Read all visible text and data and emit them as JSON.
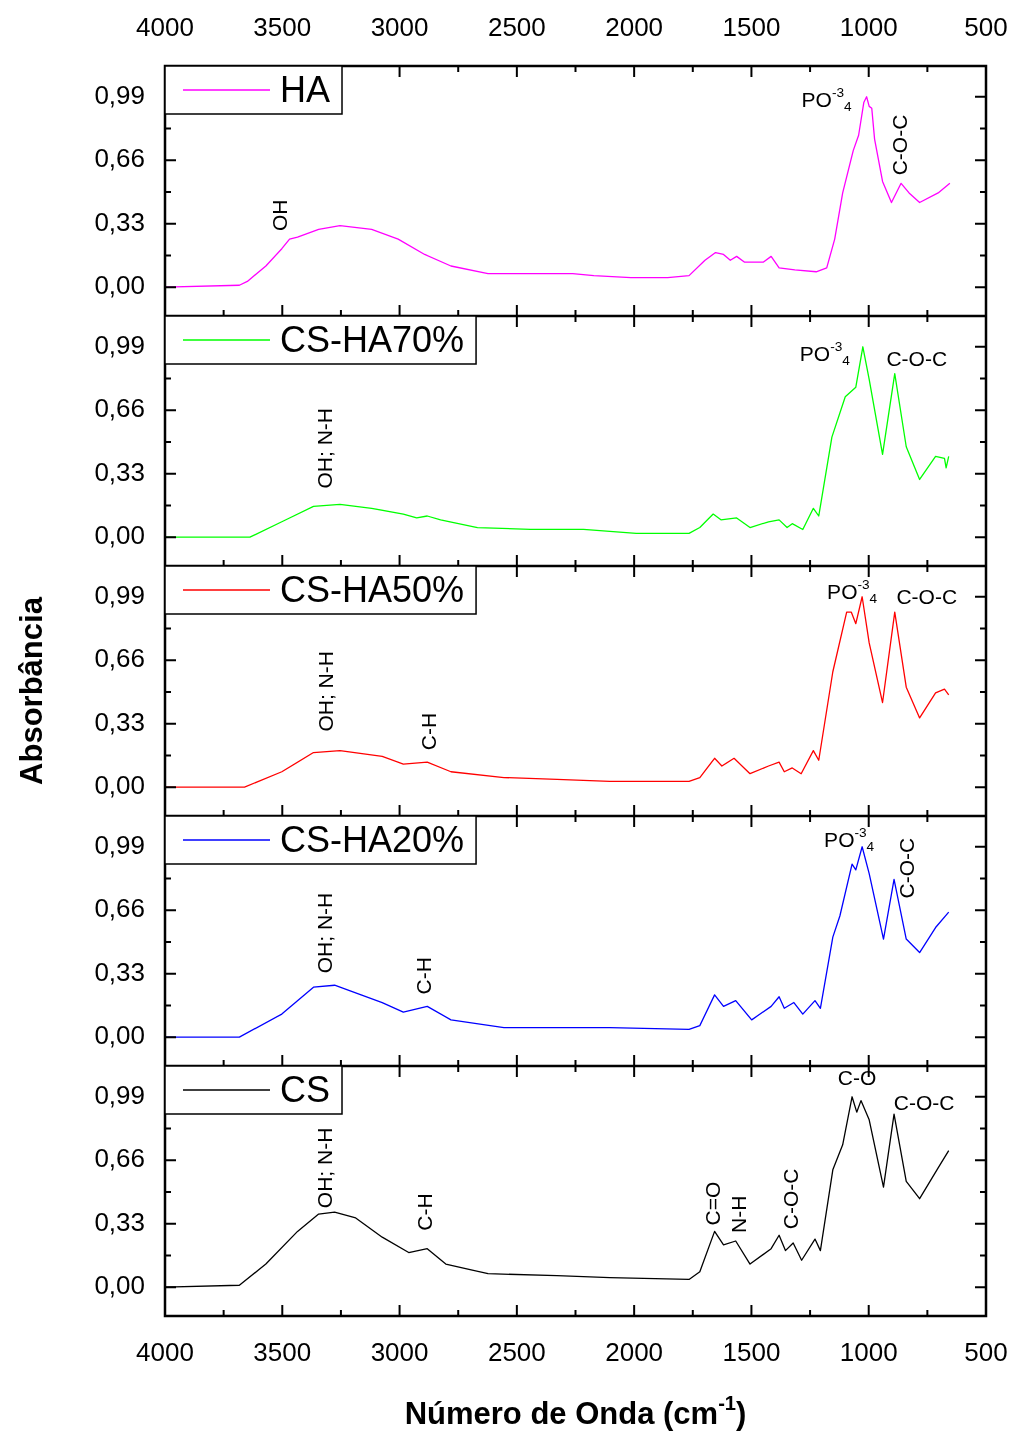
{
  "chart_data": [
    {
      "type": "line",
      "xlim": [
        4000,
        500
      ],
      "xticks": [
        4000,
        {
          "value": 3750,
          "label": null
        },
        3500,
        {
          "value": 3250,
          "label": null
        },
        3000,
        {
          "value": 2750,
          "label": null
        },
        2500,
        {
          "value": 2250,
          "label": null
        },
        2000,
        {
          "value": 1750,
          "label": null
        },
        1500,
        {
          "value": 1250,
          "label": null
        },
        1000,
        {
          "value": 750,
          "label": null
        },
        500
      ],
      "x2lim": [
        4000,
        500
      ],
      "x2ticks": [
        4000,
        {
          "value": 3750,
          "label": null
        },
        3500,
        {
          "value": 3250,
          "label": null
        },
        3000,
        {
          "value": 2750,
          "label": null
        },
        2500,
        {
          "value": 2250,
          "label": null
        },
        2000,
        {
          "value": 1750,
          "label": null
        },
        1500,
        {
          "value": 1250,
          "label": null
        },
        1000,
        {
          "value": 750,
          "label": null
        },
        500
      ],
      "ylim": [
        -0.15,
        1.15
      ],
      "yticks": [
        {
          "value": 0,
          "label": "0,00"
        },
        {
          "value": 0.165,
          "label": null
        },
        {
          "value": 0.33,
          "label": "0,33"
        },
        {
          "value": 0.495,
          "label": null
        },
        {
          "value": 0.66,
          "label": "0,66"
        },
        {
          "value": 0.825,
          "label": null
        },
        {
          "value": 0.99,
          "label": "0,99"
        }
      ],
      "tick_labels": "y",
      "legend": "top left",
      "x": [
        4000,
        3683,
        3649,
        3570,
        3502,
        3469,
        3435,
        3345,
        3254,
        3119,
        3006,
        2893,
        2781,
        2623,
        2442,
        2262,
        2172,
        2014,
        1857,
        1766,
        1698,
        1653,
        1619,
        1590,
        1563,
        1529,
        1483,
        1450,
        1416,
        1382,
        1315,
        1224,
        1179,
        1145,
        1111,
        1066,
        1043,
        1021,
        1009,
        998,
        987,
        975,
        941,
        903,
        862,
        828,
        783,
        704,
        654
      ],
      "series": [
        {
          "name": "HA",
          "color": "#ff00ff",
          "values": [
            0,
            0.01,
            0.03,
            0.11,
            0.2,
            0.25,
            0.26,
            0.3,
            0.32,
            0.3,
            0.25,
            0.17,
            0.11,
            0.07,
            0.07,
            0.07,
            0.06,
            0.05,
            0.05,
            0.06,
            0.14,
            0.18,
            0.17,
            0.14,
            0.16,
            0.13,
            0.13,
            0.13,
            0.16,
            0.1,
            0.09,
            0.08,
            0.1,
            0.25,
            0.49,
            0.71,
            0.79,
            0.96,
            0.99,
            0.94,
            0.93,
            0.77,
            0.55,
            0.44,
            0.54,
            0.49,
            0.44,
            0.49,
            0.54
          ]
        }
      ],
      "annotations": [
        {
          "text": "OH",
          "x": 3469,
          "y": 0.25
        },
        {
          "text": "PO$^{-3}$$_{4}$",
          "x": 1009,
          "y": 0.99
        },
        {
          "text": "C-O-C",
          "x": 862,
          "y": 0.54
        }
      ]
    },
    {
      "type": "line",
      "xlim": [
        4000,
        500
      ],
      "xticks": [
        4000,
        {
          "value": 3750,
          "label": null
        },
        3500,
        {
          "value": 3250,
          "label": null
        },
        3000,
        {
          "value": 2750,
          "label": null
        },
        2500,
        {
          "value": 2250,
          "label": null
        },
        2000,
        {
          "value": 1750,
          "label": null
        },
        1500,
        {
          "value": 1250,
          "label": null
        },
        1000,
        {
          "value": 750,
          "label": null
        },
        500
      ],
      "ylim": [
        -0.15,
        1.15
      ],
      "yticks": [
        {
          "value": 0,
          "label": "0,00"
        },
        {
          "value": 0.165,
          "label": null
        },
        {
          "value": 0.33,
          "label": "0,33"
        },
        {
          "value": 0.495,
          "label": null
        },
        {
          "value": 0.66,
          "label": "0,66"
        },
        {
          "value": 0.825,
          "label": null
        },
        {
          "value": 0.99,
          "label": "0,99"
        }
      ],
      "tick_labels": "y",
      "legend": "top left",
      "x": [
        4000,
        3638,
        3502,
        3367,
        3254,
        3119,
        2984,
        2927,
        2882,
        2825,
        2668,
        2442,
        2216,
        1991,
        1766,
        1720,
        1663,
        1630,
        1563,
        1506,
        1427,
        1382,
        1348,
        1326,
        1281,
        1236,
        1213,
        1157,
        1100,
        1055,
        1025,
        998,
        941,
        889,
        840,
        783,
        715,
        677,
        670,
        659
      ],
      "series": [
        {
          "name": "CS-HA70%",
          "color": "#00ff00",
          "values": [
            0,
            0,
            0.08,
            0.16,
            0.17,
            0.15,
            0.12,
            0.1,
            0.11,
            0.09,
            0.05,
            0.04,
            0.04,
            0.02,
            0.02,
            0.05,
            0.12,
            0.09,
            0.1,
            0.05,
            0.08,
            0.09,
            0.05,
            0.07,
            0.04,
            0.15,
            0.11,
            0.52,
            0.73,
            0.78,
            0.99,
            0.82,
            0.43,
            0.85,
            0.47,
            0.3,
            0.42,
            0.41,
            0.36,
            0.42
          ]
        }
      ],
      "annotations": [
        {
          "text": "OH; N-H",
          "x": 3254,
          "y": 0.17
        },
        {
          "text": "PO$^{-3}$$_{4}$",
          "x": 1025,
          "y": 0.99
        },
        {
          "text": "C-O-C",
          "x": 889,
          "y": 0.85
        }
      ]
    },
    {
      "type": "line",
      "xlim": [
        4000,
        500
      ],
      "xticks": [
        4000,
        {
          "value": 3750,
          "label": null
        },
        3500,
        {
          "value": 3250,
          "label": null
        },
        3000,
        {
          "value": 2750,
          "label": null
        },
        2500,
        {
          "value": 2250,
          "label": null
        },
        2000,
        {
          "value": 1750,
          "label": null
        },
        1500,
        {
          "value": 1250,
          "label": null
        },
        1000,
        {
          "value": 750,
          "label": null
        },
        500
      ],
      "ylim": [
        -0.15,
        1.15
      ],
      "yticks": [
        {
          "value": 0,
          "label": "0,00"
        },
        {
          "value": 0.165,
          "label": null
        },
        {
          "value": 0.33,
          "label": "0,33"
        },
        {
          "value": 0.495,
          "label": null
        },
        {
          "value": 0.66,
          "label": "0,66"
        },
        {
          "value": 0.825,
          "label": null
        },
        {
          "value": 0.99,
          "label": "0,99"
        }
      ],
      "tick_labels": "y",
      "legend": "top left",
      "ylabel": "Absorbância",
      "x": [
        4000,
        3661,
        3502,
        3367,
        3254,
        3074,
        2984,
        2882,
        2781,
        2555,
        2329,
        2104,
        1766,
        1720,
        1657,
        1626,
        1574,
        1506,
        1427,
        1382,
        1360,
        1326,
        1288,
        1236,
        1213,
        1153,
        1094,
        1074,
        1055,
        1028,
        998,
        941,
        889,
        840,
        783,
        715,
        677,
        659
      ],
      "series": [
        {
          "name": "CS-HA50%",
          "color": "#ff0000",
          "values": [
            0,
            0,
            0.08,
            0.18,
            0.19,
            0.16,
            0.12,
            0.13,
            0.08,
            0.05,
            0.04,
            0.03,
            0.03,
            0.05,
            0.15,
            0.11,
            0.15,
            0.07,
            0.11,
            0.13,
            0.08,
            0.1,
            0.07,
            0.19,
            0.14,
            0.6,
            0.91,
            0.91,
            0.85,
            0.99,
            0.75,
            0.44,
            0.91,
            0.52,
            0.36,
            0.49,
            0.51,
            0.48
          ]
        }
      ],
      "annotations": [
        {
          "text": "OH; N-H",
          "x": 3254,
          "y": 0.19
        },
        {
          "text": "C-H",
          "x": 2882,
          "y": 0.13
        },
        {
          "text": "PO$^{-3}$$_{4}$",
          "x": 1028,
          "y": 0.99
        },
        {
          "text": "C-O-C",
          "x": 889,
          "y": 0.91
        }
      ]
    },
    {
      "type": "line",
      "xlim": [
        4000,
        500
      ],
      "xticks": [
        4000,
        {
          "value": 3750,
          "label": null
        },
        3500,
        {
          "value": 3250,
          "label": null
        },
        3000,
        {
          "value": 2750,
          "label": null
        },
        2500,
        {
          "value": 2250,
          "label": null
        },
        2000,
        {
          "value": 1750,
          "label": null
        },
        1500,
        {
          "value": 1250,
          "label": null
        },
        1000,
        {
          "value": 750,
          "label": null
        },
        500
      ],
      "ylim": [
        -0.15,
        1.15
      ],
      "yticks": [
        {
          "value": 0,
          "label": "0,00"
        },
        {
          "value": 0.165,
          "label": null
        },
        {
          "value": 0.33,
          "label": "0,33"
        },
        {
          "value": 0.495,
          "label": null
        },
        {
          "value": 0.66,
          "label": "0,66"
        },
        {
          "value": 0.825,
          "label": null
        },
        {
          "value": 0.99,
          "label": "0,99"
        }
      ],
      "tick_labels": "y",
      "legend": "top left",
      "x": [
        4000,
        3683,
        3502,
        3367,
        3277,
        3164,
        3074,
        2984,
        2882,
        2781,
        2555,
        2329,
        2104,
        1766,
        1720,
        1657,
        1619,
        1567,
        1499,
        1416,
        1382,
        1360,
        1319,
        1281,
        1229,
        1206,
        1153,
        1123,
        1071,
        1055,
        1028,
        998,
        937,
        892,
        840,
        783,
        715,
        659
      ],
      "series": [
        {
          "name": "CS-HA20%",
          "color": "#0000ff",
          "values": [
            0,
            0,
            0.12,
            0.26,
            0.27,
            0.22,
            0.18,
            0.13,
            0.16,
            0.09,
            0.05,
            0.05,
            0.05,
            0.04,
            0.06,
            0.22,
            0.16,
            0.19,
            0.09,
            0.16,
            0.21,
            0.15,
            0.18,
            0.12,
            0.19,
            0.15,
            0.52,
            0.63,
            0.9,
            0.87,
            0.99,
            0.85,
            0.51,
            0.82,
            0.51,
            0.44,
            0.57,
            0.65
          ]
        }
      ],
      "annotations": [
        {
          "text": "OH; N-H",
          "x": 3277,
          "y": 0.27
        },
        {
          "text": "C-H",
          "x": 2882,
          "y": 0.16
        },
        {
          "text": "PO$^{-3}$$_{4}$",
          "x": 1028,
          "y": 0.99
        },
        {
          "text": "C-O-C",
          "x": 892,
          "y": 0.82
        }
      ]
    },
    {
      "type": "line",
      "xlim": [
        4000,
        500
      ],
      "xticks": [
        4000,
        {
          "value": 3750,
          "label": null
        },
        3500,
        {
          "value": 3250,
          "label": null
        },
        3000,
        {
          "value": 2750,
          "label": null
        },
        2500,
        {
          "value": 2250,
          "label": null
        },
        2000,
        {
          "value": 1750,
          "label": null
        },
        1500,
        {
          "value": 1250,
          "label": null
        },
        1000,
        {
          "value": 750,
          "label": null
        },
        500
      ],
      "ylim": [
        -0.15,
        1.15
      ],
      "yticks": [
        {
          "value": 0,
          "label": "0,00"
        },
        {
          "value": 0.165,
          "label": null
        },
        {
          "value": 0.33,
          "label": "0,33"
        },
        {
          "value": 0.495,
          "label": null
        },
        {
          "value": 0.66,
          "label": "0,66"
        },
        {
          "value": 0.825,
          "label": null
        },
        {
          "value": 0.99,
          "label": "0,99"
        }
      ],
      "legend": "top left",
      "xlabel": "Número de Onda (cm$^{-1}$)",
      "x": [
        4000,
        3683,
        3570,
        3435,
        3345,
        3277,
        3187,
        3074,
        2961,
        2882,
        2803,
        2623,
        2329,
        2104,
        1766,
        1720,
        1657,
        1619,
        1567,
        1506,
        1416,
        1382,
        1355,
        1322,
        1286,
        1229,
        1206,
        1153,
        1111,
        1071,
        1051,
        1033,
        998,
        937,
        892,
        840,
        783,
        704,
        659
      ],
      "series": [
        {
          "name": "CS",
          "color": "#000000",
          "values": [
            0,
            0.01,
            0.12,
            0.29,
            0.38,
            0.39,
            0.36,
            0.26,
            0.18,
            0.2,
            0.12,
            0.07,
            0.06,
            0.05,
            0.04,
            0.08,
            0.29,
            0.22,
            0.24,
            0.12,
            0.2,
            0.27,
            0.19,
            0.23,
            0.14,
            0.25,
            0.19,
            0.61,
            0.74,
            0.99,
            0.91,
            0.97,
            0.87,
            0.52,
            0.9,
            0.55,
            0.46,
            0.62,
            0.71
          ]
        }
      ],
      "annotations": [
        {
          "text": "OH; N-H",
          "x": 3277,
          "y": 0.39
        },
        {
          "text": "C-H",
          "x": 2882,
          "y": 0.2
        },
        {
          "text": "C=O",
          "x": 1657,
          "y": 0.29
        },
        {
          "text": "N-H",
          "x": 1567,
          "y": 0.24
        },
        {
          "text": "C-O-C",
          "x": 1382,
          "y": 0.27
        },
        {
          "text": "C-O",
          "x": 1071,
          "y": 0.99
        },
        {
          "text": "C-O-C",
          "x": 892,
          "y": 0.9
        }
      ]
    }
  ]
}
